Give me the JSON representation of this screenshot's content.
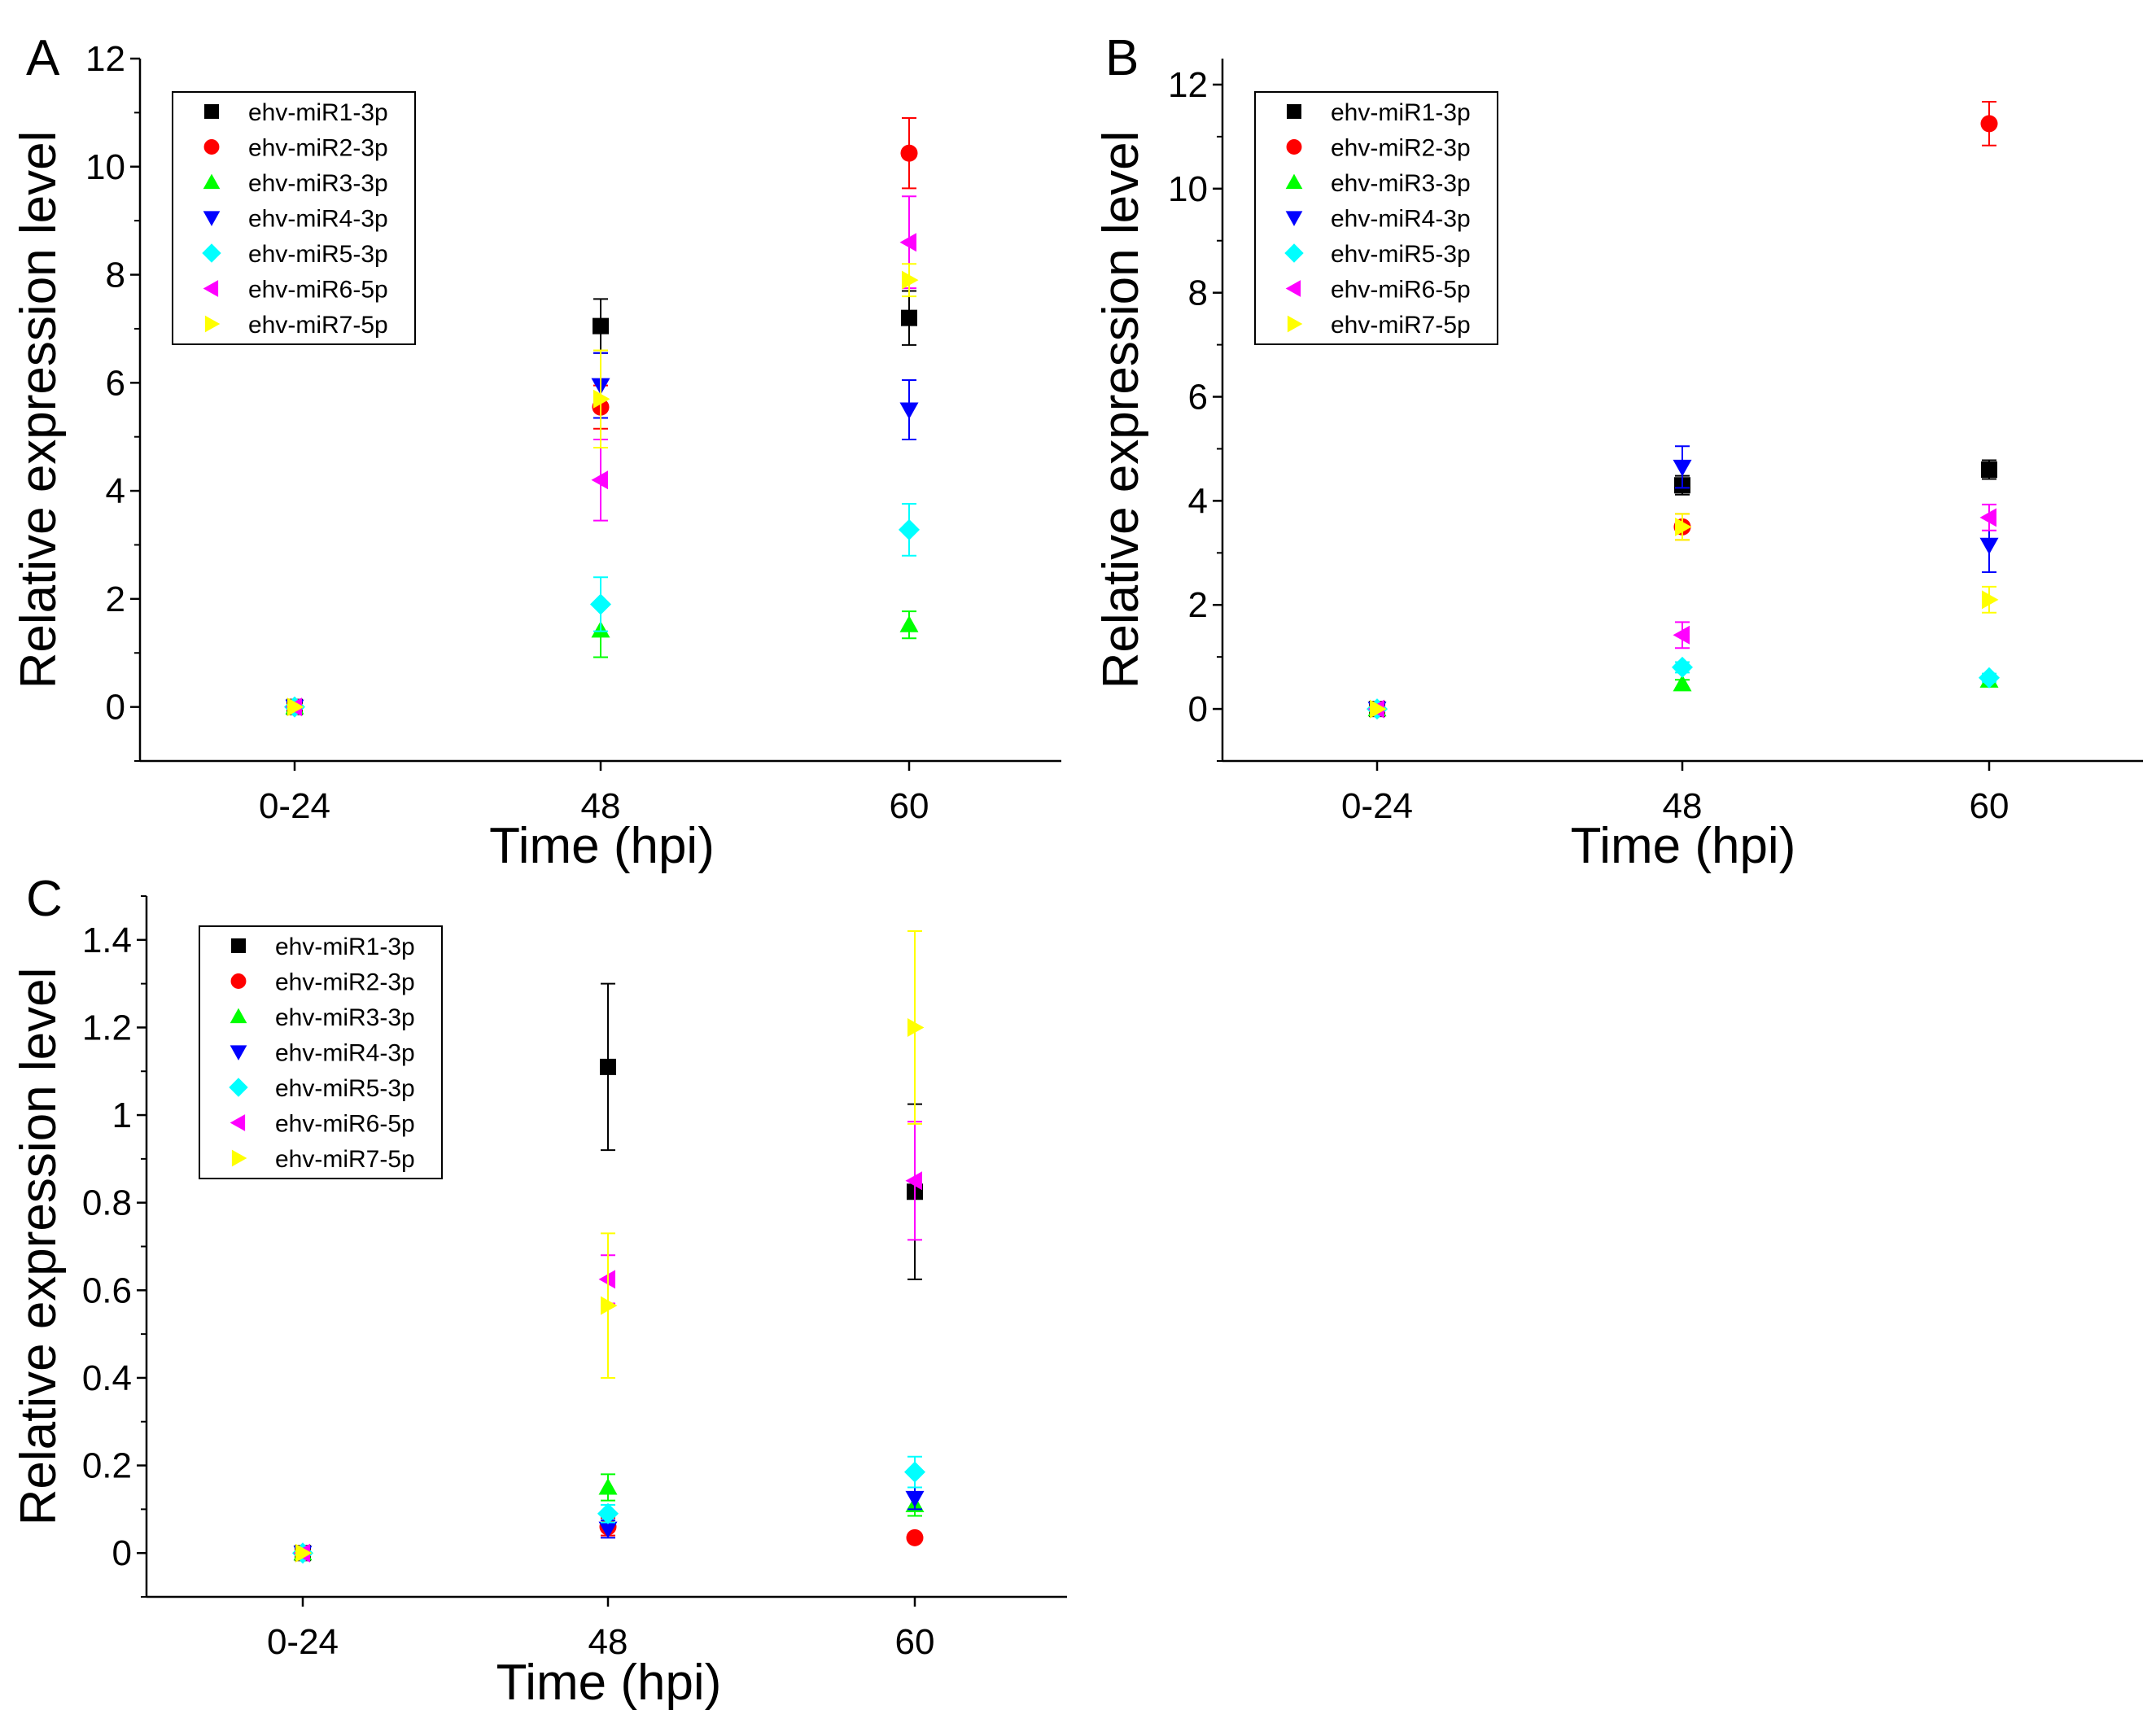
{
  "figure": {
    "panels": [
      "A",
      "B",
      "C"
    ],
    "series_names": [
      "ehv-miR1-3p",
      "ehv-miR2-3p",
      "ehv-miR3-3p",
      "ehv-miR4-3p",
      "ehv-miR5-3p",
      "ehv-miR6-5p",
      "ehv-miR7-5p"
    ],
    "series_colors": [
      "#000000",
      "#ff0000",
      "#00ff00",
      "#0000ff",
      "#00ffff",
      "#ff00ff",
      "#ffff00"
    ],
    "series_markers": [
      "square",
      "circle",
      "triangle-up",
      "triangle-down",
      "diamond",
      "triangle-left",
      "triangle-right"
    ]
  },
  "chart_data": [
    {
      "panel": "A",
      "type": "scatter",
      "xlabel": "Time (hpi)",
      "ylabel": "Relative expression level",
      "categories": [
        "0-24",
        "48",
        "60"
      ],
      "ylim": [
        -1,
        12
      ],
      "yticks": [
        0,
        2,
        4,
        6,
        8,
        10,
        12
      ],
      "ytick_labels": [
        "0",
        "2",
        "4",
        "6",
        "8",
        "10",
        "12"
      ],
      "legend": "top-left",
      "series": [
        {
          "name": "ehv-miR1-3p",
          "values": [
            0,
            7.05,
            7.2
          ],
          "errors": [
            0,
            0.5,
            0.5
          ]
        },
        {
          "name": "ehv-miR2-3p",
          "values": [
            0,
            5.55,
            10.25
          ],
          "errors": [
            0,
            0.4,
            0.65
          ]
        },
        {
          "name": "ehv-miR3-3p",
          "values": [
            0,
            1.42,
            1.52
          ],
          "errors": [
            0,
            0.5,
            0.25
          ]
        },
        {
          "name": "ehv-miR4-3p",
          "values": [
            0,
            5.95,
            5.5
          ],
          "errors": [
            0,
            0.6,
            0.55
          ]
        },
        {
          "name": "ehv-miR5-3p",
          "values": [
            0,
            1.9,
            3.28
          ],
          "errors": [
            0,
            0.5,
            0.48
          ]
        },
        {
          "name": "ehv-miR6-5p",
          "values": [
            0,
            4.2,
            8.6
          ],
          "errors": [
            0,
            0.75,
            0.85
          ]
        },
        {
          "name": "ehv-miR7-5p",
          "values": [
            0,
            5.7,
            7.9
          ],
          "errors": [
            0,
            0.9,
            0.3
          ]
        }
      ]
    },
    {
      "panel": "B",
      "type": "scatter",
      "xlabel": "Time (hpi)",
      "ylabel": "Relative expression level",
      "categories": [
        "0-24",
        "48",
        "60"
      ],
      "ylim": [
        -1,
        12.5
      ],
      "yticks": [
        0,
        2,
        4,
        6,
        8,
        10,
        12
      ],
      "ytick_labels": [
        "0",
        "2",
        "4",
        "6",
        "8",
        "10",
        "12"
      ],
      "legend": "top-left",
      "series": [
        {
          "name": "ehv-miR1-3p",
          "values": [
            0,
            4.3,
            4.6
          ],
          "errors": [
            0,
            0.18,
            0.18
          ]
        },
        {
          "name": "ehv-miR2-3p",
          "values": [
            0,
            3.5,
            11.25
          ],
          "errors": [
            0,
            0.25,
            0.42
          ]
        },
        {
          "name": "ehv-miR3-3p",
          "values": [
            0,
            0.48,
            0.55
          ],
          "errors": [
            0,
            0.08,
            0.08
          ]
        },
        {
          "name": "ehv-miR4-3p",
          "values": [
            0,
            4.65,
            3.15
          ],
          "errors": [
            0,
            0.4,
            0.52
          ]
        },
        {
          "name": "ehv-miR5-3p",
          "values": [
            0,
            0.8,
            0.6
          ],
          "errors": [
            0,
            0.1,
            0.08
          ]
        },
        {
          "name": "ehv-miR6-5p",
          "values": [
            0,
            1.42,
            3.68
          ],
          "errors": [
            0,
            0.25,
            0.25
          ]
        },
        {
          "name": "ehv-miR7-5p",
          "values": [
            0,
            3.5,
            2.1
          ],
          "errors": [
            0,
            0.25,
            0.25
          ]
        }
      ]
    },
    {
      "panel": "C",
      "type": "scatter",
      "xlabel": "Time (hpi)",
      "ylabel": "Relative expression level",
      "categories": [
        "0-24",
        "48",
        "60"
      ],
      "ylim": [
        -0.1,
        1.5
      ],
      "yticks": [
        0,
        0.2,
        0.4,
        0.6,
        0.8,
        1.0,
        1.2,
        1.4
      ],
      "ytick_labels": [
        "0",
        "0.2",
        "0.4",
        "0.6",
        "0.8",
        "1",
        "1.2",
        "1.4"
      ],
      "legend": "top-left",
      "series": [
        {
          "name": "ehv-miR1-3p",
          "values": [
            0,
            1.11,
            0.825
          ],
          "errors": [
            0,
            0.19,
            0.2
          ]
        },
        {
          "name": "ehv-miR2-3p",
          "values": [
            0,
            0.06,
            0.035
          ],
          "errors": [
            0,
            0.02,
            0.005
          ]
        },
        {
          "name": "ehv-miR3-3p",
          "values": [
            0,
            0.15,
            0.11
          ],
          "errors": [
            0,
            0.03,
            0.025
          ]
        },
        {
          "name": "ehv-miR4-3p",
          "values": [
            0,
            0.055,
            0.125
          ],
          "errors": [
            0,
            0.02,
            0.025
          ]
        },
        {
          "name": "ehv-miR5-3p",
          "values": [
            0,
            0.09,
            0.185
          ],
          "errors": [
            0,
            0.02,
            0.035
          ]
        },
        {
          "name": "ehv-miR6-5p",
          "values": [
            0,
            0.625,
            0.85
          ],
          "errors": [
            0,
            0.055,
            0.135
          ]
        },
        {
          "name": "ehv-miR7-5p",
          "values": [
            0,
            0.565,
            1.2
          ],
          "errors": [
            0,
            0.165,
            0.22
          ]
        }
      ]
    }
  ]
}
